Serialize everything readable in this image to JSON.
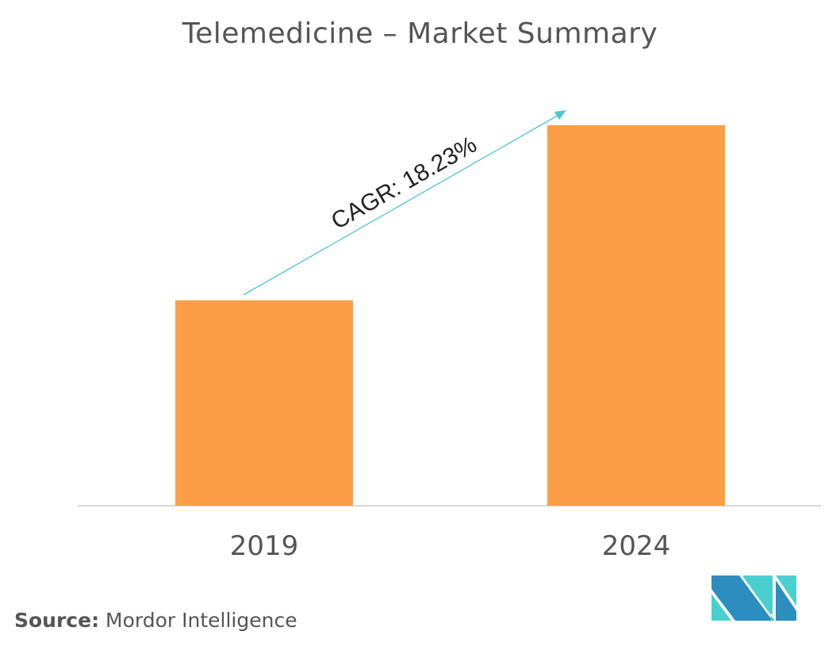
{
  "chart_data": {
    "type": "bar",
    "title": "Telemedicine – Market Summary",
    "categories": [
      "2019",
      "2024"
    ],
    "values": [
      0.54,
      1.0
    ],
    "ylim": [
      0,
      1.0
    ],
    "xlabel": "",
    "ylabel": "",
    "grid": false,
    "annotation": "CAGR: 18.23%",
    "bar_color": "#FD9E46",
    "arrow_color": "#4FC6C9",
    "axis_color": "#cccccc"
  },
  "source": {
    "label": "Source:",
    "text": "Mordor Intelligence"
  },
  "logo": {
    "text": "Mordor Intelligence",
    "colors": [
      "#2C8EBF",
      "#4ACFCF"
    ]
  }
}
